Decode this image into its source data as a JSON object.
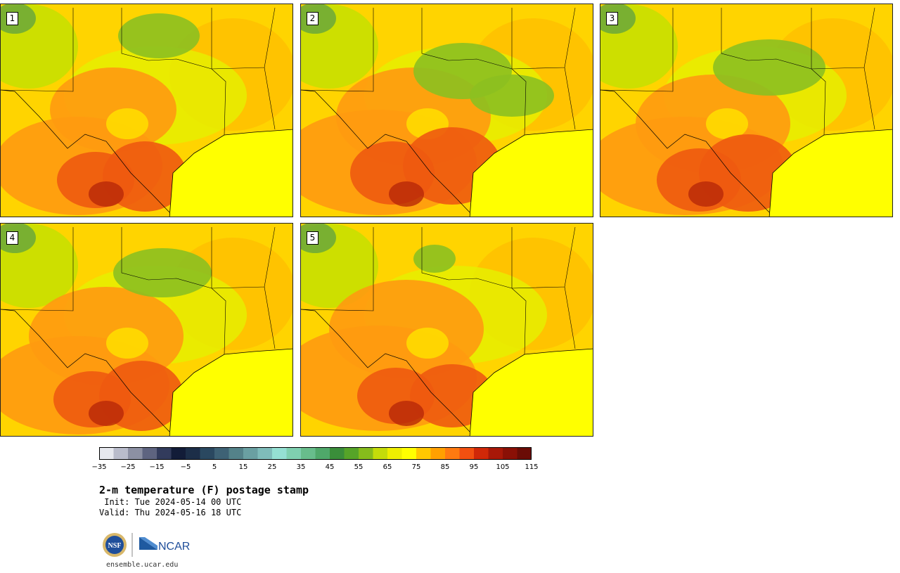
{
  "panels": [
    {
      "label": "1"
    },
    {
      "label": "2"
    },
    {
      "label": "3"
    },
    {
      "label": "4"
    },
    {
      "label": "5"
    }
  ],
  "colorbar": {
    "colors": [
      "#e6e8ee",
      "#b9bccb",
      "#8c90a3",
      "#5e6480",
      "#323b5c",
      "#121c38",
      "#1c2e48",
      "#2a4860",
      "#3e6275",
      "#548289",
      "#6aa0a2",
      "#7fbcba",
      "#95e0d3",
      "#7fd0b0",
      "#68bd8c",
      "#4fa86a",
      "#3a8e3a",
      "#56a428",
      "#86bc1c",
      "#c4dc0a",
      "#eeee00",
      "#ffff00",
      "#ffc800",
      "#ffa000",
      "#ff7a10",
      "#f25010",
      "#d02808",
      "#a81808",
      "#8a1006",
      "#6a0c06"
    ],
    "ticks": [
      "−35",
      "−25",
      "−15",
      "−5",
      "5",
      "15",
      "25",
      "35",
      "45",
      "55",
      "65",
      "75",
      "85",
      "95",
      "105",
      "115"
    ]
  },
  "title": "2-m temperature (F) postage stamp",
  "init": " Init: Tue 2024-05-14 00 UTC",
  "valid": "Valid: Thu 2024-05-16 18 UTC",
  "logos": {
    "left": "NSF",
    "right": "NCAR"
  },
  "site": "ensemble.ucar.edu"
}
